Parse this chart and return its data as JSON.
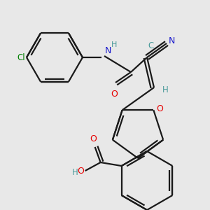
{
  "background_color": "#e8e8e8",
  "bond_color": "#1a1a1a",
  "atom_colors": {
    "O": "#e60000",
    "N": "#1a1acc",
    "Cl": "#008000",
    "C": "#4a9a9a",
    "H": "#4a9a9a"
  },
  "figsize": [
    3.0,
    3.0
  ],
  "dpi": 100
}
